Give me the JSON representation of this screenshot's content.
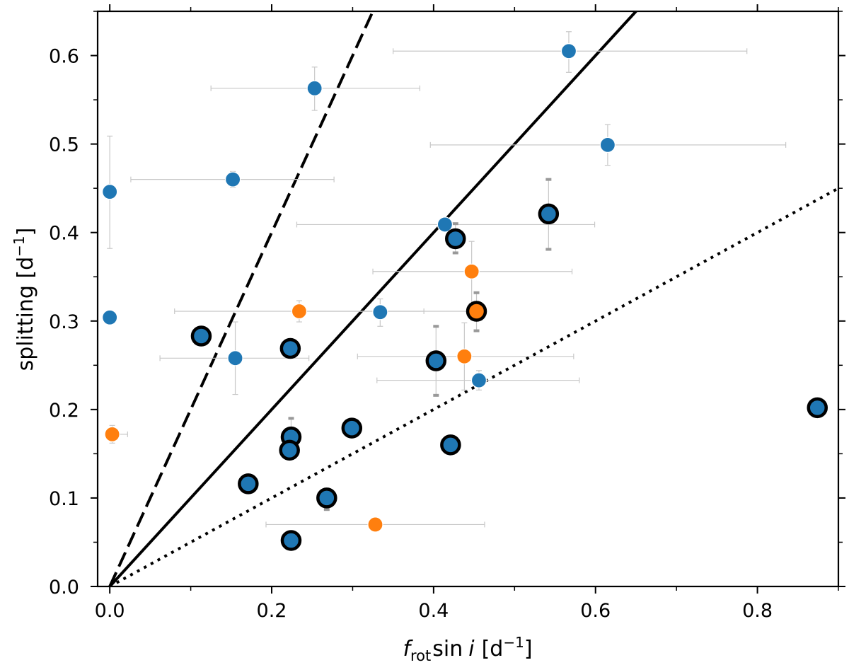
{
  "chart_data": {
    "type": "scatter",
    "title": "",
    "xlabel": {
      "f": "f",
      "sub": "rot",
      "sin": "sin",
      "i": "i",
      "unit_open": "[d",
      "exp": "−1",
      "unit_close": "]"
    },
    "ylabel": {
      "text": "splitting [d",
      "exp": "−1",
      "close": "]"
    },
    "xlim": [
      -0.015,
      0.9
    ],
    "ylim": [
      0.0,
      0.65
    ],
    "xticks": [
      0.0,
      0.2,
      0.4,
      0.6,
      0.8
    ],
    "xtick_labels": [
      "0.0",
      "0.2",
      "0.4",
      "0.6",
      "0.8"
    ],
    "yticks": [
      0.0,
      0.1,
      0.2,
      0.3,
      0.4,
      0.5,
      0.6
    ],
    "ytick_labels": [
      "0.0",
      "0.1",
      "0.2",
      "0.3",
      "0.4",
      "0.5",
      "0.6"
    ],
    "colors": {
      "blue": "#1f77b4",
      "orange": "#ff7f0e",
      "errorbar": "#c8c8c8",
      "outline": "#000000"
    },
    "reference_lines": [
      {
        "name": "dashed-line",
        "slope": 2.0,
        "style": "dashed"
      },
      {
        "name": "solid-line",
        "slope": 1.0,
        "style": "solid"
      },
      {
        "name": "dotted-line",
        "slope": 0.5,
        "style": "dotted"
      }
    ],
    "series": [
      {
        "name": "blue",
        "color": "#1f77b4",
        "points": [
          {
            "x": 0.567,
            "y": 0.605,
            "xerr": [
              0.35,
              0.787
            ],
            "yerr": [
              0.581,
              0.627
            ]
          },
          {
            "x": 0.253,
            "y": 0.563,
            "xerr": [
              0.125,
              0.383
            ],
            "yerr": [
              0.538,
              0.587
            ]
          },
          {
            "x": 0.615,
            "y": 0.499,
            "xerr": [
              0.396,
              0.835
            ],
            "yerr": [
              0.476,
              0.522
            ]
          },
          {
            "x": 0.0,
            "y": 0.446,
            "xerr": null,
            "yerr": [
              0.382,
              0.509
            ]
          },
          {
            "x": 0.152,
            "y": 0.46,
            "xerr": [
              0.026,
              0.277
            ],
            "yerr": [
              0.451,
              0.469
            ]
          },
          {
            "x": 0.414,
            "y": 0.409,
            "xerr": [
              0.231,
              0.599
            ],
            "yerr": null
          },
          {
            "x": 0.0,
            "y": 0.304,
            "xerr": null,
            "yerr": null
          },
          {
            "x": 0.334,
            "y": 0.31,
            "xerr": null,
            "yerr": [
              0.294,
              0.325
            ]
          },
          {
            "x": 0.155,
            "y": 0.258,
            "xerr": [
              0.062,
              0.246
            ],
            "yerr": [
              0.217,
              0.299
            ]
          },
          {
            "x": 0.456,
            "y": 0.233,
            "xerr": [
              0.33,
              0.58
            ],
            "yerr": [
              0.222,
              0.244
            ]
          }
        ]
      },
      {
        "name": "orange",
        "color": "#ff7f0e",
        "points": [
          {
            "x": 0.447,
            "y": 0.356,
            "xerr": [
              0.325,
              0.571
            ],
            "yerr": [
              0.32,
              0.39
            ]
          },
          {
            "x": 0.234,
            "y": 0.311,
            "xerr": [
              0.08,
              0.388
            ],
            "yerr": [
              0.299,
              0.323
            ]
          },
          {
            "x": 0.438,
            "y": 0.26,
            "xerr": [
              0.306,
              0.573
            ],
            "yerr": [
              0.222,
              0.298
            ]
          },
          {
            "x": 0.003,
            "y": 0.172,
            "xerr": [
              0.0,
              0.022
            ],
            "yerr": [
              0.162,
              0.182
            ]
          },
          {
            "x": 0.328,
            "y": 0.07,
            "xerr": [
              0.193,
              0.463
            ],
            "yerr": null
          }
        ]
      },
      {
        "name": "outlined",
        "color": "#1f77b4",
        "outline": true,
        "points": [
          {
            "x": 0.542,
            "y": 0.421,
            "fill": "#1f77b4",
            "yerr": [
              0.381,
              0.46
            ],
            "xerr": null
          },
          {
            "x": 0.427,
            "y": 0.393,
            "fill": "#1f77b4",
            "yerr": [
              0.377,
              0.41
            ],
            "xerr": null
          },
          {
            "x": 0.453,
            "y": 0.311,
            "fill": "#ff7f0e",
            "yerr": [
              0.289,
              0.332
            ],
            "xerr": [
              0.24,
              0.453
            ]
          },
          {
            "x": 0.113,
            "y": 0.283,
            "fill": "#1f77b4",
            "yerr": null,
            "xerr": null
          },
          {
            "x": 0.223,
            "y": 0.269,
            "fill": "#1f77b4",
            "yerr": null,
            "xerr": null
          },
          {
            "x": 0.403,
            "y": 0.255,
            "fill": "#1f77b4",
            "yerr": [
              0.216,
              0.294
            ],
            "xerr": null
          },
          {
            "x": 0.874,
            "y": 0.202,
            "fill": "#1f77b4",
            "yerr": null,
            "xerr": null
          },
          {
            "x": 0.299,
            "y": 0.179,
            "fill": "#1f77b4",
            "yerr": null,
            "xerr": null
          },
          {
            "x": 0.224,
            "y": 0.169,
            "fill": "#1f77b4",
            "yerr": [
              0.147,
              0.19
            ],
            "xerr": null
          },
          {
            "x": 0.421,
            "y": 0.16,
            "fill": "#1f77b4",
            "yerr": null,
            "xerr": null
          },
          {
            "x": 0.222,
            "y": 0.154,
            "fill": "#1f77b4",
            "yerr": null,
            "xerr": null
          },
          {
            "x": 0.171,
            "y": 0.116,
            "fill": "#1f77b4",
            "yerr": null,
            "xerr": null
          },
          {
            "x": 0.268,
            "y": 0.1,
            "fill": "#1f77b4",
            "yerr": [
              0.087,
              0.11
            ],
            "xerr": null
          },
          {
            "x": 0.224,
            "y": 0.052,
            "fill": "#1f77b4",
            "yerr": null,
            "xerr": null
          }
        ]
      }
    ]
  }
}
